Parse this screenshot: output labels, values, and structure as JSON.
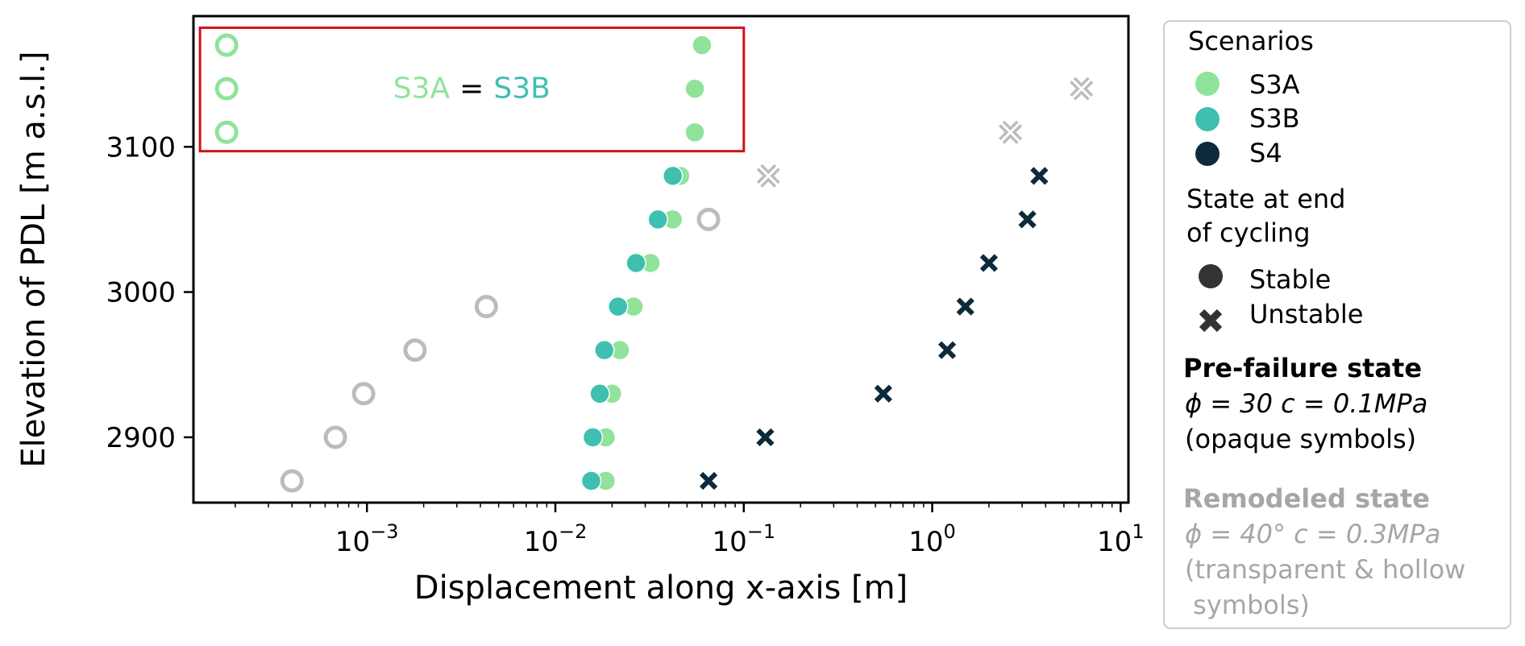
{
  "chart_data": {
    "type": "scatter",
    "xlabel": "Displacement along x-axis [m]",
    "ylabel": "Elevation of PDL [m a.s.l.]",
    "xscale": "log",
    "xlim": [
      0.00012,
      11
    ],
    "ylim": [
      2855,
      3190
    ],
    "x_ticks": [
      {
        "value": 0.001,
        "base": "10",
        "exp": "−3"
      },
      {
        "value": 0.01,
        "base": "10",
        "exp": "−2"
      },
      {
        "value": 0.1,
        "base": "10",
        "exp": "−1"
      },
      {
        "value": 1,
        "base": "10",
        "exp": "0"
      },
      {
        "value": 10,
        "base": "10",
        "exp": "1"
      }
    ],
    "y_ticks": [
      2900,
      3000,
      3100
    ],
    "grid": false,
    "colors": {
      "S3A": "#90e39a",
      "S3B": "#3fbfb0",
      "S4": "#0c2a3c",
      "remodeled": "#bcbcbc",
      "highlight_box": "#d0101c"
    },
    "series": [
      {
        "name": "S3A",
        "state": "pre-failure",
        "marker": "circle",
        "points": [
          [
            0.0185,
            2870
          ],
          [
            0.0185,
            2900
          ],
          [
            0.02,
            2930
          ],
          [
            0.022,
            2960
          ],
          [
            0.026,
            2990
          ],
          [
            0.032,
            3020
          ],
          [
            0.042,
            3050
          ],
          [
            0.046,
            3080
          ],
          [
            0.055,
            3110
          ],
          [
            0.055,
            3140
          ],
          [
            0.06,
            3170
          ]
        ]
      },
      {
        "name": "S3B",
        "state": "pre-failure",
        "marker": "circle",
        "points": [
          [
            0.0155,
            2870
          ],
          [
            0.0158,
            2900
          ],
          [
            0.0172,
            2930
          ],
          [
            0.0182,
            2960
          ],
          [
            0.0215,
            2990
          ],
          [
            0.0268,
            3020
          ],
          [
            0.035,
            3050
          ],
          [
            0.042,
            3080
          ]
        ]
      },
      {
        "name": "S4",
        "state": "pre-failure",
        "marker": "x",
        "points": [
          [
            0.065,
            2870
          ],
          [
            0.13,
            2900
          ],
          [
            0.55,
            2930
          ],
          [
            1.2,
            2960
          ],
          [
            1.5,
            2990
          ],
          [
            2.0,
            3020
          ],
          [
            3.2,
            3050
          ],
          [
            3.7,
            3080
          ]
        ]
      },
      {
        "name": "S3A",
        "state": "remodeled",
        "marker": "circle",
        "points": [
          [
            0.00018,
            3110
          ],
          [
            0.00018,
            3140
          ],
          [
            0.00018,
            3170
          ]
        ]
      },
      {
        "name": "S4",
        "state": "remodeled",
        "marker": "circle",
        "points": [
          [
            0.0004,
            2870
          ],
          [
            0.00068,
            2900
          ],
          [
            0.00096,
            2930
          ],
          [
            0.0018,
            2960
          ],
          [
            0.0043,
            2990
          ],
          [
            0.065,
            3050
          ]
        ]
      },
      {
        "name": "S4",
        "state": "remodeled",
        "marker": "x",
        "points": [
          [
            0.135,
            3080
          ],
          [
            2.6,
            3110
          ],
          [
            6.2,
            3140
          ]
        ]
      }
    ],
    "highlight_box": {
      "x0": 0.00013,
      "x1": 0.1,
      "y0": 3097,
      "y1": 3182
    },
    "annotation": {
      "text_a": "S3A",
      "equals": "=",
      "text_b": "S3B",
      "x": 0.0036,
      "y": 3141
    },
    "legend": {
      "placement": "outside-right",
      "scenarios_title": "Scenarios",
      "scenarios": [
        {
          "label": "S3A",
          "color": "#90e39a"
        },
        {
          "label": "S3B",
          "color": "#3fbfb0"
        },
        {
          "label": "S4",
          "color": "#0c2a3c"
        }
      ],
      "state_title_line1": "State at end",
      "state_title_line2": "of cycling",
      "states": [
        {
          "label": "Stable",
          "marker": "circle"
        },
        {
          "label": "Unstable",
          "marker": "x"
        }
      ],
      "prefailure_title": "Pre-failure state",
      "prefailure_params": "ϕ = 30   c = 0.1MPa",
      "prefailure_note": "(opaque symbols)",
      "remodeled_title": "Remodeled state",
      "remodeled_params": "ϕ = 40°  c = 0.3MPa",
      "remodeled_note_line1": "(transparent & hollow",
      "remodeled_note_line2": " symbols)"
    }
  }
}
